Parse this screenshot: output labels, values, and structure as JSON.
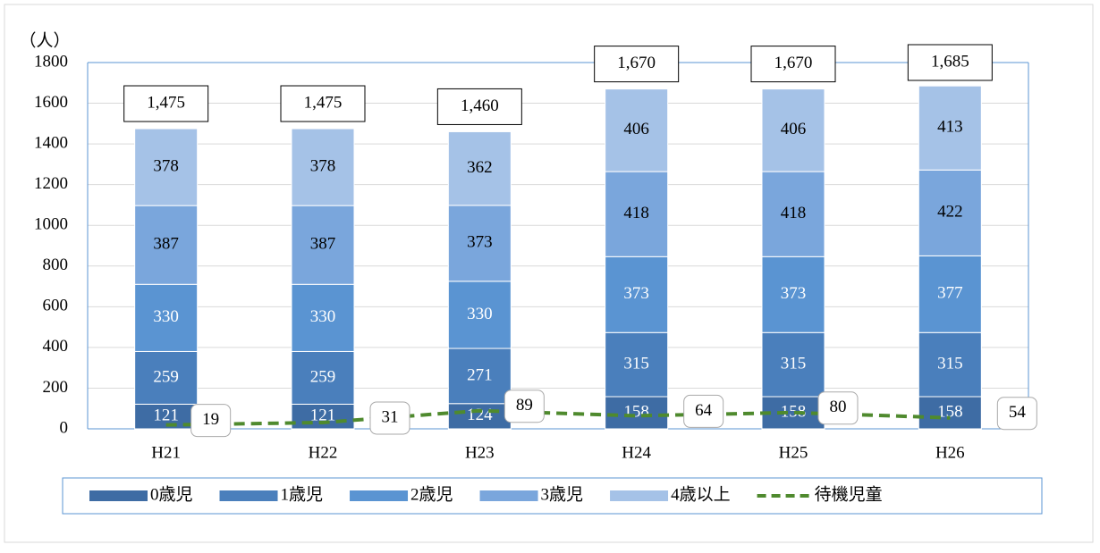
{
  "chart_data": {
    "type": "stacked_bar_line",
    "y_label": "（人）",
    "categories": [
      "H21",
      "H22",
      "H23",
      "H24",
      "H25",
      "H26"
    ],
    "series": [
      {
        "name": "0歳児",
        "color": "#3e6ca4",
        "label_color": "#ffffff",
        "values": [
          121,
          121,
          124,
          158,
          158,
          158
        ]
      },
      {
        "name": "1歳児",
        "color": "#4a7fbc",
        "label_color": "#ffffff",
        "values": [
          259,
          259,
          271,
          315,
          315,
          315
        ]
      },
      {
        "name": "2歳児",
        "color": "#5a94d2",
        "label_color": "#ffffff",
        "values": [
          330,
          330,
          330,
          373,
          373,
          377
        ]
      },
      {
        "name": "3歳児",
        "color": "#7aa6dc",
        "label_color": "#000000",
        "values": [
          387,
          387,
          373,
          418,
          418,
          422
        ]
      },
      {
        "name": "4歳以上",
        "color": "#a5c2e7",
        "label_color": "#000000",
        "values": [
          378,
          378,
          362,
          406,
          406,
          413
        ]
      },
      {
        "name": "待機児童",
        "type": "line",
        "color": "#4f8a2e",
        "dashed": true,
        "values": [
          19,
          31,
          89,
          64,
          80,
          54
        ]
      }
    ],
    "totals": {
      "values": [
        1475,
        1475,
        1460,
        1670,
        1670,
        1685
      ],
      "value_labels": [
        "1,475",
        "1,475",
        "1,460",
        "1,670",
        "1,670",
        "1,685"
      ]
    },
    "ylim": [
      0,
      1800
    ],
    "yticks": [
      0,
      200,
      400,
      600,
      800,
      1000,
      1200,
      1400,
      1600,
      1800
    ],
    "grid": true,
    "legend": "bottom"
  }
}
